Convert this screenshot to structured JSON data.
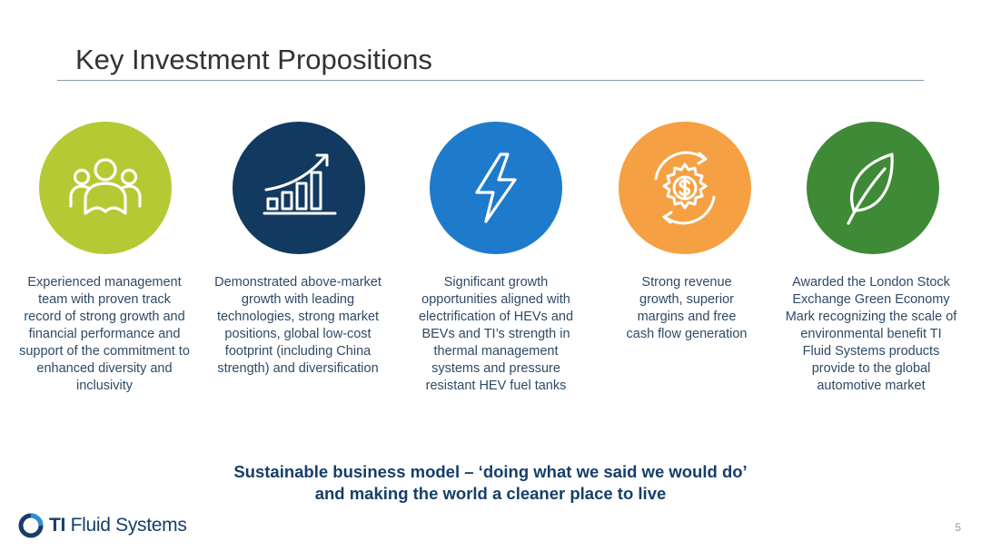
{
  "header": {
    "title": "Key Investment Propositions"
  },
  "propositions": [
    {
      "icon": "people-group-icon",
      "color": "#b5c934",
      "text": "Experienced management team with proven track record of strong growth and financial performance and support of the commitment to enhanced diversity and inclusivity"
    },
    {
      "icon": "growth-chart-icon",
      "color": "#12395f",
      "text": "Demonstrated above-market growth with leading  technologies, strong market positions, global low-cost footprint (including China strength) and diversification"
    },
    {
      "icon": "lightning-bolt-icon",
      "color": "#1e7bcb",
      "text": "Significant growth opportunities aligned with electrification of HEVs and BEVs and TI’s strength in thermal management systems and pressure resistant HEV fuel tanks"
    },
    {
      "icon": "dollar-gear-icon",
      "color": "#f5a043",
      "text": "Strong revenue growth, superior margins and free cash flow generation"
    },
    {
      "icon": "leaf-icon",
      "color": "#3f8a36",
      "text": "Awarded the London Stock Exchange Green Economy Mark recognizing the scale of environmental benefit TI Fluid Systems products provide to the global automotive market"
    }
  ],
  "tagline": {
    "line1": "Sustainable business model – ‘doing what we said we would do’",
    "line2": "and making the world a cleaner place to live"
  },
  "footer": {
    "logo_bold": "TI",
    "logo_rest": " Fluid Systems",
    "page_number": "5"
  }
}
